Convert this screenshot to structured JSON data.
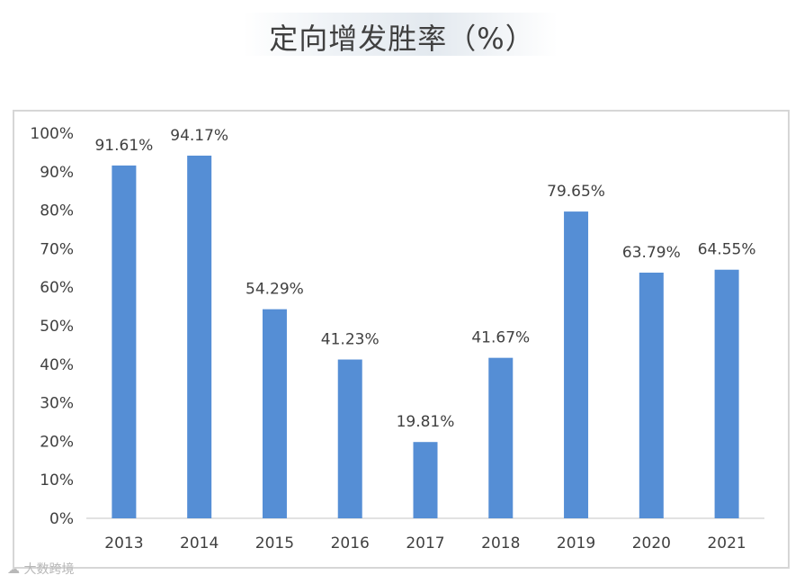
{
  "title": "定向增发胜率（%）",
  "watermark": "大数跨境",
  "colors": {
    "bar": "#558ed5",
    "axis": "#d9d9d9",
    "text": "#404040"
  },
  "chart_data": {
    "type": "bar",
    "title": "定向增发胜率（%）",
    "categories": [
      "2013",
      "2014",
      "2015",
      "2016",
      "2017",
      "2018",
      "2019",
      "2020",
      "2021"
    ],
    "values": [
      91.61,
      94.17,
      54.29,
      41.23,
      19.81,
      41.67,
      79.65,
      63.79,
      64.55
    ],
    "data_labels": [
      "91.61%",
      "94.17%",
      "54.29%",
      "41.23%",
      "19.81%",
      "41.67%",
      "79.65%",
      "63.79%",
      "64.55%"
    ],
    "y_ticks": [
      "0%",
      "10%",
      "20%",
      "30%",
      "40%",
      "50%",
      "60%",
      "70%",
      "80%",
      "90%",
      "100%"
    ],
    "ylim": [
      0,
      100
    ],
    "grid": false,
    "legend": false
  }
}
